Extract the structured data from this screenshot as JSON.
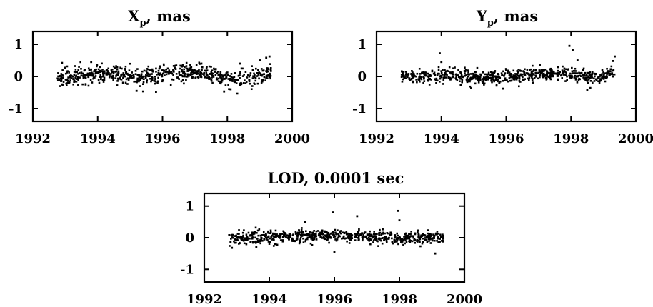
{
  "chart_data": [
    {
      "type": "scatter",
      "title_main": "X",
      "title_sub": "p",
      "title_unit": ",  mas",
      "xlabel": "",
      "ylabel": "",
      "xlim": [
        1992,
        2000
      ],
      "ylim": [
        -1.4,
        1.4
      ],
      "xticks": [
        "1992",
        "1994",
        "1996",
        "1998",
        "2000"
      ],
      "yticks": [
        "1",
        "0",
        "-1"
      ],
      "grid": false,
      "series": [
        {
          "x_start": 1992.75,
          "x_end": 1999.35,
          "count": 700,
          "trend": [
            [
              1992.75,
              -0.02
            ],
            [
              1993.5,
              0.02
            ],
            [
              1994.5,
              0.1
            ],
            [
              1995.3,
              -0.05
            ],
            [
              1996,
              0.1
            ],
            [
              1996.8,
              0.15
            ],
            [
              1997.5,
              0.08
            ],
            [
              1998.0,
              -0.1
            ],
            [
              1998.7,
              -0.05
            ],
            [
              1999.35,
              0.15
            ]
          ],
          "spread": 0.13,
          "outliers": [
            [
              1992.9,
              0.42
            ],
            [
              1993.8,
              0.45
            ],
            [
              1995.2,
              -0.45
            ],
            [
              1995.8,
              -0.48
            ],
            [
              1997.2,
              0.4
            ],
            [
              1997.9,
              -0.47
            ],
            [
              1998.1,
              -0.4
            ],
            [
              1998.4,
              0.4
            ],
            [
              1999.0,
              0.5
            ],
            [
              1999.3,
              0.62
            ],
            [
              1999.2,
              0.58
            ]
          ]
        }
      ]
    },
    {
      "type": "scatter",
      "title_main": "Y",
      "title_sub": "p",
      "title_unit": ",  mas",
      "xlabel": "",
      "ylabel": "",
      "xlim": [
        1992,
        2000
      ],
      "ylim": [
        -1.4,
        1.4
      ],
      "xticks": [
        "1992",
        "1994",
        "1996",
        "1998",
        "2000"
      ],
      "yticks": [
        "1",
        "0",
        "-1"
      ],
      "grid": false,
      "series": [
        {
          "x_start": 1992.75,
          "x_end": 1999.35,
          "count": 700,
          "trend": [
            [
              1992.75,
              0.05
            ],
            [
              1993.5,
              0.0
            ],
            [
              1994.5,
              0.02
            ],
            [
              1995.3,
              -0.05
            ],
            [
              1996,
              0.0
            ],
            [
              1996.8,
              0.05
            ],
            [
              1997.5,
              0.08
            ],
            [
              1998.0,
              0.05
            ],
            [
              1998.7,
              -0.02
            ],
            [
              1999.35,
              0.1
            ]
          ],
          "spread": 0.11,
          "outliers": [
            [
              1993.95,
              0.72
            ],
            [
              1994.0,
              0.45
            ],
            [
              1997.95,
              0.95
            ],
            [
              1998.05,
              0.82
            ],
            [
              1998.2,
              0.5
            ],
            [
              1998.5,
              -0.42
            ],
            [
              1995.9,
              -0.38
            ],
            [
              1999.35,
              0.62
            ],
            [
              1999.3,
              0.48
            ]
          ]
        }
      ]
    },
    {
      "type": "scatter",
      "title_main": "LOD,  0.0001 sec",
      "title_sub": "",
      "title_unit": "",
      "xlabel": "",
      "ylabel": "",
      "xlim": [
        1992,
        2000
      ],
      "ylim": [
        -1.4,
        1.4
      ],
      "xticks": [
        "1992",
        "1994",
        "1996",
        "1998",
        "2000"
      ],
      "yticks": [
        "1",
        "0",
        "-1"
      ],
      "grid": false,
      "series": [
        {
          "x_start": 1992.75,
          "x_end": 1999.35,
          "count": 700,
          "trend": [
            [
              1992.75,
              0.0
            ],
            [
              1993.5,
              0.02
            ],
            [
              1994.5,
              0.03
            ],
            [
              1995.3,
              0.1
            ],
            [
              1996,
              0.05
            ],
            [
              1996.8,
              0.05
            ],
            [
              1997.5,
              0.0
            ],
            [
              1998.0,
              -0.05
            ],
            [
              1998.7,
              0.02
            ],
            [
              1999.35,
              0.0
            ]
          ],
          "spread": 0.1,
          "outliers": [
            [
              1995.95,
              0.8
            ],
            [
              1996.7,
              0.68
            ],
            [
              1997.95,
              0.85
            ],
            [
              1998.0,
              0.55
            ],
            [
              1995.1,
              0.5
            ],
            [
              1996.0,
              -0.45
            ],
            [
              1992.85,
              -0.32
            ],
            [
              1999.1,
              -0.5
            ],
            [
              1993.6,
              -0.3
            ]
          ]
        }
      ]
    }
  ]
}
